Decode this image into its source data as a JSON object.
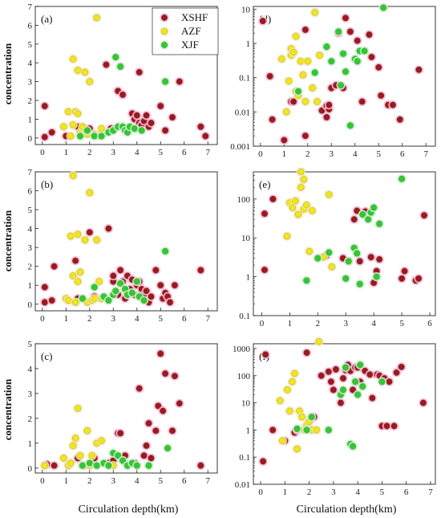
{
  "series_styles": [
    {
      "name": "XSHF",
      "color": "#a01818",
      "halo": "#f4b8d6"
    },
    {
      "name": "AZF",
      "color": "#f2ea08",
      "halo": "#f4e4b0"
    },
    {
      "name": "XJF",
      "color": "#2ccc2c",
      "halo": "#c8ecc8"
    }
  ],
  "y_label": "concentration",
  "x_label": "Circulation depth(km)",
  "chart_data": [
    {
      "type": "scatter",
      "label": "(a)",
      "legend": "top-right",
      "xlim": [
        -0.3,
        7.4
      ],
      "xticks": [
        0,
        1,
        2,
        3,
        4,
        5,
        6,
        7
      ],
      "ylim": [
        -0.35,
        7
      ],
      "yticks": [
        0,
        1,
        2,
        3,
        4,
        5,
        6,
        7
      ],
      "yscale": "linear",
      "series": [
        {
          "name": "XSHF",
          "x": [
            0.1,
            0.4,
            0.1,
            1.0,
            1.5,
            2.0,
            2.7,
            2.9,
            3.0,
            3.2,
            3.4,
            3.5,
            3.6,
            3.8,
            3.9,
            4.0,
            4.1,
            4.1,
            4.2,
            4.3,
            4.4,
            4.5,
            4.6,
            5.0,
            5.2,
            5.5,
            5.8,
            6.7,
            6.9
          ],
          "y": [
            0.05,
            0.3,
            1.7,
            0.1,
            0.6,
            0.5,
            3.9,
            0.5,
            0.4,
            2.5,
            2.3,
            0.5,
            0.4,
            1.3,
            1.0,
            1.2,
            0.8,
            3.5,
            0.7,
            0.9,
            1.2,
            0.6,
            0.8,
            1.7,
            0.4,
            1.1,
            3.0,
            0.6,
            0.1
          ]
        },
        {
          "name": "AZF",
          "x": [
            0.9,
            1.1,
            1.2,
            1.3,
            1.3,
            1.4,
            1.5,
            1.5,
            1.6,
            1.7,
            1.8,
            1.9,
            2.0,
            2.2,
            2.3,
            2.4,
            2.5
          ],
          "y": [
            0.6,
            1.4,
            0.1,
            4.2,
            0.7,
            1.4,
            1.3,
            3.6,
            0.3,
            0.6,
            3.5,
            0.2,
            3.0,
            0.2,
            6.4,
            0.1,
            0.5
          ]
        },
        {
          "name": "XJF",
          "x": [
            1.6,
            1.9,
            2.2,
            2.5,
            2.8,
            3.0,
            3.1,
            3.2,
            3.3,
            3.4,
            3.5,
            3.6,
            3.7,
            3.9,
            4.2,
            5.2
          ],
          "y": [
            0.1,
            0.4,
            0.1,
            0.1,
            0.3,
            0.4,
            4.3,
            0.6,
            3.8,
            0.6,
            0.4,
            0.3,
            0.6,
            0.5,
            0.4,
            3.0
          ]
        }
      ]
    },
    {
      "type": "scatter",
      "label": "(d)",
      "xlim": [
        -0.3,
        7.4
      ],
      "xticks": [
        0,
        1,
        2,
        3,
        4,
        5,
        6,
        7
      ],
      "ylim": [
        0.001,
        12
      ],
      "yticks": [
        0.001,
        0.01,
        0.1,
        1,
        10
      ],
      "yticklabels": [
        "0.001",
        "0.01",
        "0.1",
        "1",
        "10"
      ],
      "yscale": "log",
      "series": [
        {
          "name": "XSHF",
          "x": [
            0.1,
            0.4,
            0.5,
            1.0,
            1.3,
            1.4,
            1.9,
            1.9,
            2.6,
            2.8,
            2.8,
            2.9,
            2.9,
            3.0,
            3.2,
            3.3,
            3.5,
            3.6,
            3.8,
            4.1,
            4.3,
            4.6,
            4.7,
            5.0,
            5.1,
            5.4,
            5.6,
            5.9,
            6.7
          ],
          "y": [
            4.5,
            0.11,
            0.006,
            0.0015,
            0.02,
            0.02,
            2.5,
            0.002,
            0.011,
            0.015,
            0.007,
            0.012,
            0.016,
            0.05,
            0.06,
            2.0,
            0.05,
            5.5,
            2.2,
            1.2,
            0.02,
            1.8,
            0.4,
            0.2,
            0.03,
            0.016,
            0.016,
            0.006,
            0.17
          ]
        },
        {
          "name": "AZF",
          "x": [
            0.9,
            1.1,
            1.2,
            1.3,
            1.3,
            1.4,
            1.5,
            1.5,
            1.6,
            1.7,
            1.8,
            1.9,
            2.0,
            2.2,
            2.3,
            2.4,
            2.5
          ],
          "y": [
            0.35,
            0.01,
            0.08,
            0.7,
            0.45,
            0.55,
            1.6,
            0.04,
            0.03,
            0.3,
            0.12,
            0.02,
            0.3,
            0.05,
            8.0,
            0.02,
            0.45
          ]
        },
        {
          "name": "XJF",
          "x": [
            1.6,
            2.3,
            2.8,
            3.0,
            3.3,
            3.4,
            3.5,
            3.6,
            3.8,
            4.0,
            4.1,
            4.2,
            4.4,
            5.2
          ],
          "y": [
            0.04,
            0.14,
            0.8,
            0.3,
            2.2,
            0.06,
            0.5,
            0.15,
            0.004,
            0.35,
            0.3,
            0.6,
            0.6,
            11.0
          ]
        }
      ]
    },
    {
      "type": "scatter",
      "label": "(b)",
      "xlim": [
        -0.3,
        7.4
      ],
      "xticks": [
        0,
        1,
        2,
        3,
        4,
        5,
        6,
        7
      ],
      "ylim": [
        -0.35,
        7
      ],
      "yticks": [
        0,
        1,
        2,
        3,
        4,
        5,
        6,
        7
      ],
      "yscale": "linear",
      "series": [
        {
          "name": "XSHF",
          "x": [
            0.1,
            0.1,
            0.4,
            0.5,
            1.4,
            1.5,
            2.0,
            2.2,
            2.8,
            3.0,
            3.0,
            3.2,
            3.3,
            3.4,
            3.5,
            3.6,
            3.7,
            3.8,
            3.9,
            4.0,
            4.1,
            4.2,
            4.3,
            4.4,
            4.5,
            4.6,
            4.8,
            5.0,
            5.1,
            5.2,
            5.3,
            5.4,
            5.6,
            6.7
          ],
          "y": [
            0.1,
            0.9,
            0.2,
            2.0,
            2.3,
            0.3,
            3.8,
            0.4,
            4.0,
            1.2,
            1.5,
            0.5,
            1.8,
            1.2,
            0.3,
            1.5,
            0.8,
            1.3,
            0.5,
            1.0,
            1.2,
            0.8,
            0.5,
            0.7,
            0.1,
            0.4,
            1.8,
            1.0,
            0.3,
            0.6,
            0.4,
            0.1,
            1.0,
            1.8
          ]
        },
        {
          "name": "AZF",
          "x": [
            1.0,
            1.1,
            1.2,
            1.3,
            1.3,
            1.4,
            1.5,
            1.5,
            1.6,
            1.7,
            1.8,
            1.9,
            2.0,
            2.1,
            2.2,
            2.3,
            2.4,
            2.5
          ],
          "y": [
            0.3,
            0.2,
            3.6,
            6.8,
            1.5,
            0.1,
            3.7,
            1.2,
            1.7,
            0.3,
            3.4,
            0.1,
            5.9,
            0.2,
            0.3,
            3.4,
            1.2,
            0.3
          ]
        },
        {
          "name": "XJF",
          "x": [
            1.7,
            2.2,
            2.6,
            2.8,
            3.0,
            3.1,
            3.3,
            3.5,
            3.6,
            3.8,
            4.0,
            4.1,
            4.3,
            5.2
          ],
          "y": [
            0.3,
            0.9,
            0.4,
            0.2,
            0.5,
            0.7,
            1.1,
            0.8,
            0.5,
            0.6,
            1.2,
            0.4,
            0.2,
            2.8
          ]
        }
      ]
    },
    {
      "type": "scatter",
      "label": "(e)",
      "xlim": [
        -0.3,
        6.2
      ],
      "xticks": [
        0,
        1,
        2,
        3,
        4,
        5,
        6
      ],
      "ylim": [
        0.1,
        500
      ],
      "yticks": [
        0.1,
        1,
        10,
        100
      ],
      "yticklabels": [
        "0.1",
        "1",
        "10",
        "100"
      ],
      "yscale": "log",
      "series": [
        {
          "name": "XSHF",
          "x": [
            0.1,
            0.1,
            0.4,
            2.3,
            2.9,
            3.1,
            3.3,
            3.4,
            3.5,
            3.7,
            3.9,
            4.0,
            4.1,
            4.2,
            5.0,
            5.1,
            5.5,
            5.6,
            5.8
          ],
          "y": [
            42,
            1.5,
            100,
            3.5,
            3.0,
            2.5,
            30,
            50,
            2.5,
            48,
            3.2,
            0.7,
            1.4,
            2.8,
            0.9,
            1.4,
            0.8,
            0.9,
            38
          ]
        },
        {
          "name": "AZF",
          "x": [
            0.9,
            1.0,
            1.1,
            1.2,
            1.3,
            1.4,
            1.4,
            1.5,
            1.5,
            1.6,
            1.7,
            1.8,
            2.2,
            2.4,
            2.5
          ],
          "y": [
            11,
            80,
            60,
            90,
            40,
            200,
            500,
            320,
            55,
            70,
            4.5,
            50,
            3.2,
            130,
            1.8
          ]
        },
        {
          "name": "XJF",
          "x": [
            1.6,
            2.0,
            2.4,
            3.0,
            3.1,
            3.3,
            3.4,
            3.5,
            3.6,
            3.8,
            3.9,
            4.0,
            4.1,
            4.2,
            5.0
          ],
          "y": [
            0.8,
            3.0,
            4.2,
            0.9,
            2.5,
            5.5,
            4.0,
            0.65,
            40,
            30,
            45,
            60,
            1.0,
            23,
            330
          ]
        }
      ]
    },
    {
      "type": "scatter",
      "label": "(c)",
      "xlim": [
        -0.3,
        7.4
      ],
      "xticks": [
        0,
        1,
        2,
        3,
        4,
        5,
        6,
        7
      ],
      "ylim": [
        -0.2,
        5
      ],
      "yticks": [
        0,
        1,
        2,
        3,
        4,
        5
      ],
      "yscale": "linear",
      "series": [
        {
          "name": "XSHF",
          "x": [
            0.1,
            0.2,
            0.5,
            1.5,
            2.2,
            2.8,
            3.0,
            3.2,
            3.3,
            3.4,
            3.5,
            3.6,
            3.9,
            4.1,
            4.3,
            4.4,
            4.5,
            4.6,
            4.8,
            4.9,
            5.0,
            5.1,
            5.2,
            5.5,
            5.6,
            5.8,
            6.7
          ],
          "y": [
            0.1,
            0.15,
            0.1,
            0.4,
            0.4,
            0.2,
            0.3,
            1.4,
            1.4,
            0.4,
            0.5,
            0.1,
            0.2,
            3.2,
            0.5,
            0.9,
            1.8,
            0.4,
            1.5,
            2.5,
            4.6,
            2.3,
            3.8,
            1.5,
            3.7,
            2.6,
            0.1
          ]
        },
        {
          "name": "AZF",
          "x": [
            0.1,
            0.9,
            1.1,
            1.2,
            1.3,
            1.4,
            1.5,
            1.6,
            1.7,
            1.8,
            1.9,
            2.0,
            2.1,
            2.3,
            2.5,
            3.0
          ],
          "y": [
            0.1,
            0.4,
            0.1,
            0.2,
            0.9,
            1.2,
            2.4,
            0.5,
            0.1,
            0.1,
            1.5,
            0.1,
            0.5,
            1.0,
            1.1,
            0.1
          ]
        },
        {
          "name": "XJF",
          "x": [
            1.7,
            2.0,
            2.3,
            2.6,
            2.8,
            3.0,
            3.2,
            3.4,
            3.6,
            3.8,
            4.0,
            4.5,
            5.3
          ],
          "y": [
            0.1,
            0.2,
            0.1,
            0.2,
            0.1,
            0.6,
            0.5,
            0.3,
            0.1,
            0.2,
            0.1,
            0.1,
            0.8
          ]
        }
      ]
    },
    {
      "type": "scatter",
      "label": "(f)",
      "xlim": [
        -0.3,
        7.2
      ],
      "xticks": [
        0,
        1,
        2,
        3,
        4,
        5,
        6,
        7
      ],
      "ylim": [
        0.01,
        1500
      ],
      "yticks": [
        0.01,
        0.1,
        1,
        10,
        100,
        1000
      ],
      "yticklabels": [
        "0.01",
        "0.1",
        "1",
        "10",
        "100",
        "1000"
      ],
      "yscale": "log",
      "series": [
        {
          "name": "XSHF",
          "x": [
            0.1,
            0.2,
            0.5,
            1.0,
            1.4,
            1.5,
            1.9,
            2.2,
            2.5,
            2.8,
            2.9,
            3.0,
            3.1,
            3.3,
            3.4,
            3.5,
            3.6,
            3.7,
            3.8,
            3.9,
            4.0,
            4.1,
            4.2,
            4.3,
            4.5,
            4.6,
            4.8,
            4.9,
            5.0,
            5.1,
            5.2,
            5.3,
            5.5,
            5.6,
            5.8,
            6.7
          ],
          "y": [
            0.07,
            600,
            1.0,
            0.4,
            0.8,
            1.0,
            700,
            3.0,
            100,
            140,
            60,
            30,
            170,
            10,
            80,
            160,
            250,
            150,
            30,
            200,
            200,
            60,
            40,
            150,
            110,
            15,
            110,
            100,
            1.4,
            80,
            1.4,
            60,
            1.4,
            130,
            210,
            10
          ]
        },
        {
          "name": "AZF",
          "x": [
            0.8,
            0.9,
            1.1,
            1.2,
            1.3,
            1.4,
            1.5,
            1.6,
            1.7,
            1.8,
            1.9,
            2.0,
            2.1,
            2.3,
            2.4
          ],
          "y": [
            12,
            0.4,
            30,
            5,
            60,
            120,
            0.2,
            5,
            3,
            1,
            1.5,
            2,
            1,
            1,
            1800
          ]
        },
        {
          "name": "XJF",
          "x": [
            1.5,
            1.9,
            2.1,
            2.8,
            3.3,
            3.4,
            3.5,
            3.7,
            3.8,
            3.9,
            4.0,
            4.1,
            4.2,
            5.0
          ],
          "y": [
            1.1,
            1,
            3,
            1,
            20,
            30,
            200,
            0.3,
            0.25,
            60,
            20,
            250,
            40,
            60
          ]
        }
      ]
    }
  ]
}
